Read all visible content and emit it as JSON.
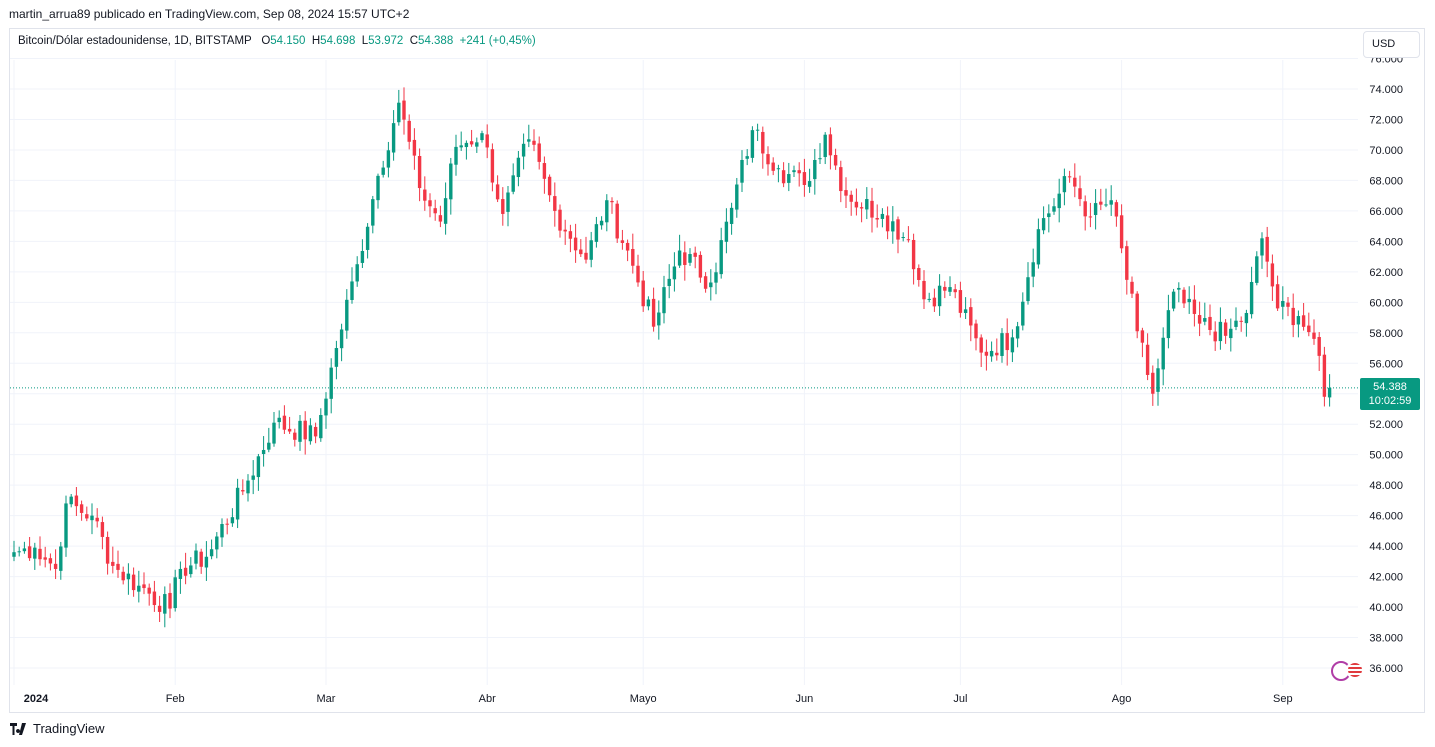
{
  "header": {
    "publisher_line": "martin_arrua89 publicado en TradingView.com, Sep 08, 2024 15:57 UTC+2"
  },
  "legend": {
    "symbol": "Bitcoin/Dólar estadounidense, 1D, BITSTAMP",
    "o_label": "O",
    "o_value": "54.150",
    "h_label": "H",
    "h_value": "54.698",
    "l_label": "L",
    "l_value": "53.972",
    "c_label": "C",
    "c_value": "54.388",
    "change": "+241 (+0,45%)"
  },
  "currency_button": "USD",
  "price_tag": {
    "price": "54.388",
    "countdown": "10:02:59"
  },
  "footer": {
    "brand": "TradingView"
  },
  "colors": {
    "up": "#089981",
    "down": "#f23645",
    "grid": "#f0f3fa",
    "text": "#131722"
  },
  "icons": [
    "tradingview-logo-icon",
    "bolt-icon",
    "flag-icon"
  ],
  "chart_data": {
    "type": "candlestick",
    "title": "",
    "ylim": [
      35500,
      76000
    ],
    "y_ticks": [
      "36.000",
      "38.000",
      "40.000",
      "42.000",
      "44.000",
      "46.000",
      "48.000",
      "50.000",
      "52.000",
      "54.000",
      "56.000",
      "58.000",
      "60.000",
      "62.000",
      "64.000",
      "66.000",
      "68.000",
      "70.000",
      "72.000",
      "74.000",
      "76.000"
    ],
    "y_tick_values": [
      36000,
      38000,
      40000,
      42000,
      44000,
      46000,
      48000,
      50000,
      52000,
      54000,
      56000,
      58000,
      60000,
      62000,
      64000,
      66000,
      68000,
      70000,
      72000,
      74000,
      76000
    ],
    "x_labels": [
      "2024",
      "Feb",
      "Mar",
      "Abr",
      "Mayo",
      "Jun",
      "Jul",
      "Ago",
      "Sep"
    ],
    "x_label_days": [
      0,
      31,
      60,
      91,
      121,
      152,
      182,
      213,
      244
    ],
    "last_close": 54388,
    "keypoints": [
      {
        "day": 0,
        "price": 43600
      },
      {
        "day": 4,
        "price": 43900
      },
      {
        "day": 8,
        "price": 42500
      },
      {
        "day": 10,
        "price": 46800
      },
      {
        "day": 15,
        "price": 46000
      },
      {
        "day": 19,
        "price": 42700
      },
      {
        "day": 24,
        "price": 41400
      },
      {
        "day": 30,
        "price": 39900
      },
      {
        "day": 32,
        "price": 42500
      },
      {
        "day": 37,
        "price": 43300
      },
      {
        "day": 45,
        "price": 48300
      },
      {
        "day": 50,
        "price": 52100
      },
      {
        "day": 58,
        "price": 51200
      },
      {
        "day": 62,
        "price": 57000
      },
      {
        "day": 66,
        "price": 62500
      },
      {
        "day": 70,
        "price": 68300
      },
      {
        "day": 74,
        "price": 73100
      },
      {
        "day": 78,
        "price": 67500
      },
      {
        "day": 82,
        "price": 65300
      },
      {
        "day": 85,
        "price": 70200
      },
      {
        "day": 90,
        "price": 71100
      },
      {
        "day": 94,
        "price": 65800
      },
      {
        "day": 99,
        "price": 70700
      },
      {
        "day": 104,
        "price": 66000
      },
      {
        "day": 110,
        "price": 62800
      },
      {
        "day": 114,
        "price": 66700
      },
      {
        "day": 119,
        "price": 62400
      },
      {
        "day": 123,
        "price": 58400
      },
      {
        "day": 128,
        "price": 63400
      },
      {
        "day": 134,
        "price": 61300
      },
      {
        "day": 138,
        "price": 66200
      },
      {
        "day": 142,
        "price": 71300
      },
      {
        "day": 147,
        "price": 68800
      },
      {
        "day": 152,
        "price": 67700
      },
      {
        "day": 156,
        "price": 71000
      },
      {
        "day": 160,
        "price": 67000
      },
      {
        "day": 167,
        "price": 65800
      },
      {
        "day": 172,
        "price": 64100
      },
      {
        "day": 175,
        "price": 60200
      },
      {
        "day": 180,
        "price": 61000
      },
      {
        "day": 186,
        "price": 56700
      },
      {
        "day": 192,
        "price": 57700
      },
      {
        "day": 197,
        "price": 64800
      },
      {
        "day": 203,
        "price": 68200
      },
      {
        "day": 207,
        "price": 65600
      },
      {
        "day": 211,
        "price": 66700
      },
      {
        "day": 216,
        "price": 58100
      },
      {
        "day": 219,
        "price": 54000
      },
      {
        "day": 223,
        "price": 60700
      },
      {
        "day": 228,
        "price": 58600
      },
      {
        "day": 233,
        "price": 57800
      },
      {
        "day": 237,
        "price": 59300
      },
      {
        "day": 240,
        "price": 64200
      },
      {
        "day": 243,
        "price": 59600
      },
      {
        "day": 247,
        "price": 59100
      },
      {
        "day": 250,
        "price": 57600
      },
      {
        "day": 252,
        "price": 53800
      },
      {
        "day": 253,
        "price": 54388
      }
    ]
  }
}
